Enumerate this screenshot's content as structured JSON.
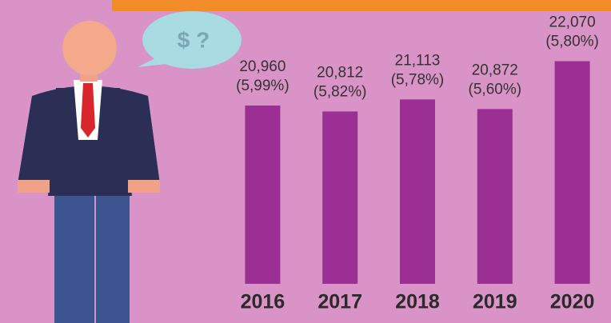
{
  "bubble_text": "$ ?",
  "chart_data": {
    "type": "bar",
    "categories": [
      "2016",
      "2017",
      "2018",
      "2019",
      "2020"
    ],
    "values": [
      20960,
      20812,
      21113,
      20872,
      22070
    ],
    "value_labels": [
      "20,960",
      "20,812",
      "21,113",
      "20,872",
      "22,070"
    ],
    "share_labels": [
      "(5,99%)",
      "(5,82%)",
      "(5,78%)",
      "(5,60%)",
      "(5,80%)"
    ],
    "color": "#9c2f93",
    "ylim": [
      16500,
      22500
    ]
  }
}
